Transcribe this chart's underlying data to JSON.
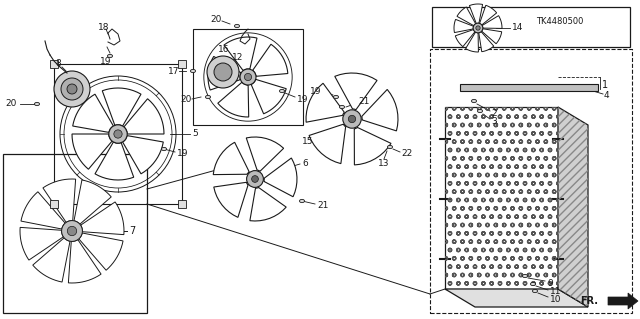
{
  "bg_color": "#ffffff",
  "line_color": "#1a1a1a",
  "diagram_code": "TK4480500",
  "fr_text": "FR.",
  "label_fontsize": 6.5,
  "title_fontsize": 7
}
